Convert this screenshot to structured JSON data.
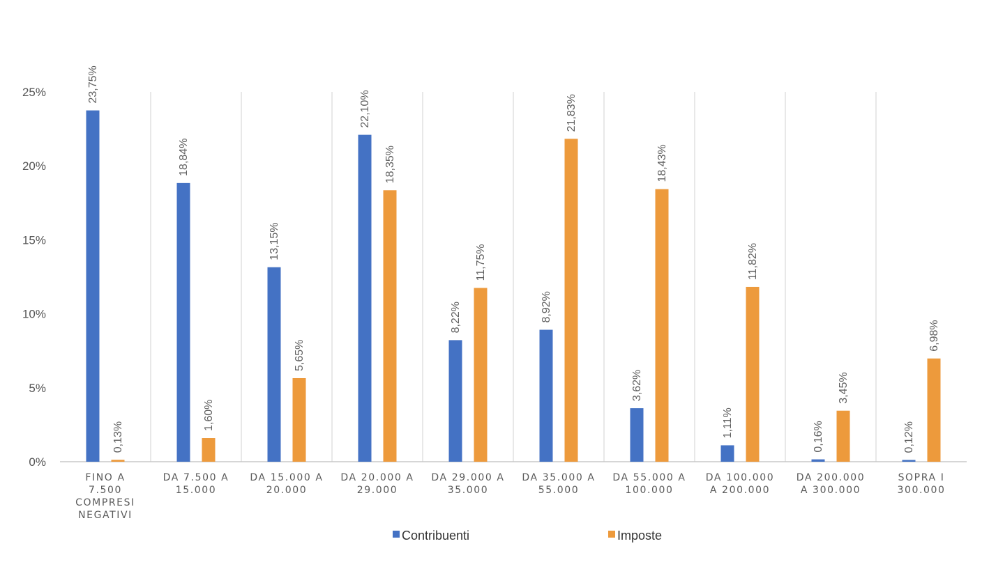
{
  "chart_data": {
    "type": "bar",
    "title": "",
    "xlabel": "",
    "ylabel": "",
    "ylim": [
      0,
      25
    ],
    "yticks": [
      "0%",
      "5%",
      "10%",
      "15%",
      "20%",
      "25%"
    ],
    "grid": "vertical category separators",
    "legend_position": "bottom",
    "categories": [
      [
        "FINO A",
        "7.500",
        "COMPRESI",
        "NEGATIVI"
      ],
      [
        "DA 7.500 A",
        "15.000"
      ],
      [
        "DA 15.000 A",
        "20.000"
      ],
      [
        "DA 20.000 A",
        "29.000"
      ],
      [
        "DA 29.000 A",
        "35.000"
      ],
      [
        "DA 35.000 A",
        "55.000"
      ],
      [
        "DA 55.000 A",
        "100.000"
      ],
      [
        "DA 100.000",
        "A 200.000"
      ],
      [
        "DA 200.000",
        "A 300.000"
      ],
      [
        "SOPRA I",
        "300.000"
      ]
    ],
    "series": [
      {
        "name": "Contribuenti",
        "color": "#4472C4",
        "values": [
          23.75,
          18.84,
          13.15,
          22.1,
          8.22,
          8.92,
          3.62,
          1.11,
          0.16,
          0.12
        ],
        "labels": [
          "23,75%",
          "18,84%",
          "13,15%",
          "22,10%",
          "8,22%",
          "8,92%",
          "3,62%",
          "1,11%",
          "0,16%",
          "0,12%"
        ]
      },
      {
        "name": "Imposte",
        "color": "#ED9A3C",
        "values": [
          0.13,
          1.6,
          5.65,
          18.35,
          11.75,
          21.83,
          18.43,
          11.82,
          3.45,
          6.98
        ],
        "labels": [
          "0,13%",
          "1,60%",
          "5,65%",
          "18,35%",
          "11,75%",
          "21,83%",
          "18,43%",
          "11,82%",
          "3,45%",
          "6,98%"
        ]
      }
    ]
  }
}
